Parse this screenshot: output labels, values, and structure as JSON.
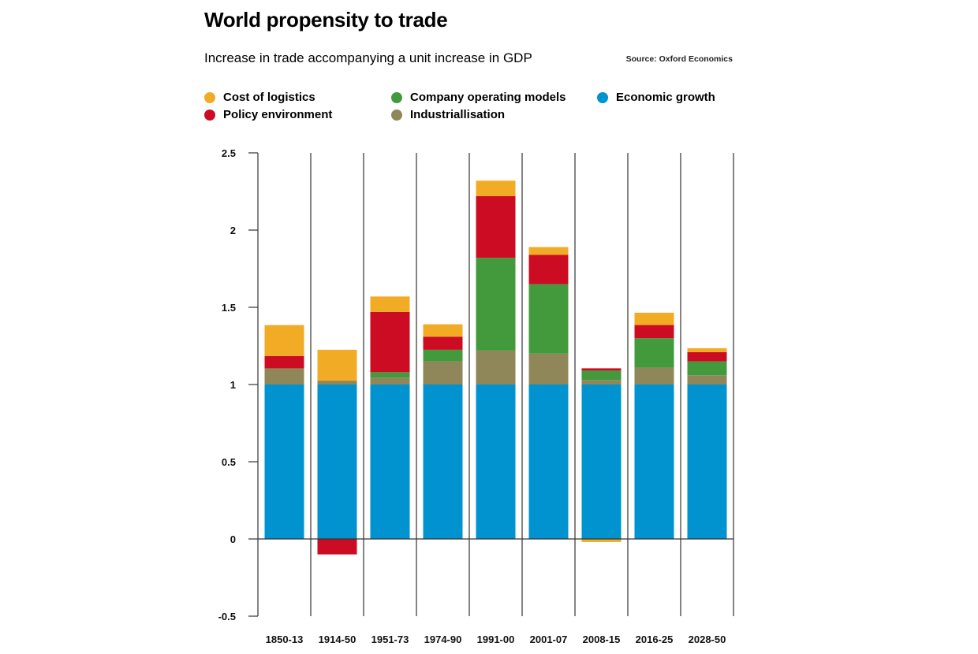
{
  "chart_data": {
    "type": "bar",
    "stacked": true,
    "title": "World propensity to trade",
    "subtitle": "Increase in trade accompanying a unit increase in GDP",
    "source": "Source: Oxford Economics",
    "xlabel": "",
    "ylabel": "",
    "ylim": [
      -0.5,
      2.5
    ],
    "yticks": [
      2.5,
      2,
      1.5,
      1,
      0.5,
      0,
      -0.5
    ],
    "ytick_labels": [
      "2.5",
      "2",
      "1.5",
      "1",
      "0.5",
      "0",
      "-0.5"
    ],
    "grid": false,
    "legend_position": "top",
    "categories": [
      "1850-13",
      "1914-50",
      "1951-73",
      "1974-90",
      "1991-00",
      "2001-07",
      "2008-15",
      "2016-25",
      "2028-50"
    ],
    "series": [
      {
        "name": "Economic growth",
        "color": "#0093d0",
        "values": [
          1.0,
          1.0,
          1.0,
          1.0,
          1.0,
          1.0,
          1.0,
          1.0,
          1.0
        ]
      },
      {
        "name": "Industriallisation",
        "color": "#8f8659",
        "values": [
          0.105,
          0.025,
          0.045,
          0.15,
          0.22,
          0.2,
          0.03,
          0.11,
          0.06
        ]
      },
      {
        "name": "Company operating models",
        "color": "#429a3d",
        "values": [
          0.0,
          0.0,
          0.035,
          0.075,
          0.6,
          0.45,
          0.06,
          0.19,
          0.09
        ]
      },
      {
        "name": "Policy environment",
        "color": "#cc0c22",
        "values": [
          0.08,
          -0.1,
          0.39,
          0.085,
          0.4,
          0.19,
          0.015,
          0.085,
          0.06
        ]
      },
      {
        "name": "Cost of logistics",
        "color": "#f2ab25",
        "values": [
          0.2,
          0.2,
          0.1,
          0.08,
          0.1,
          0.05,
          -0.02,
          0.08,
          0.025
        ]
      }
    ]
  },
  "legend": [
    {
      "label": "Cost of logistics",
      "color": "#f2ab25"
    },
    {
      "label": "Company operating models",
      "color": "#429a3d"
    },
    {
      "label": "Economic growth",
      "color": "#0093d0"
    },
    {
      "label": "Policy environment",
      "color": "#cc0c22"
    },
    {
      "label": "Industriallisation",
      "color": "#8f8659"
    }
  ]
}
